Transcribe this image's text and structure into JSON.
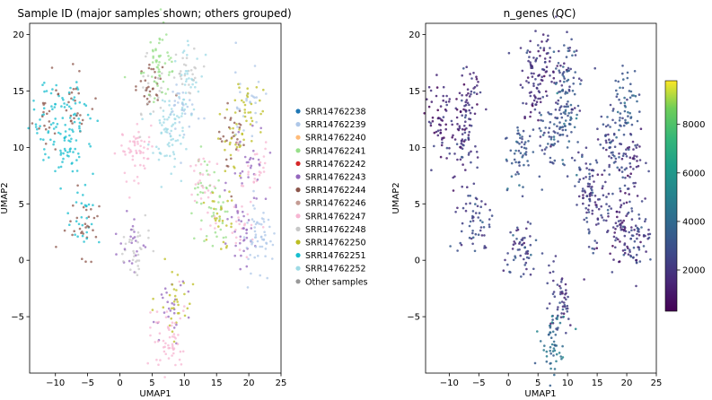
{
  "chart_data": [
    {
      "type": "scatter",
      "title": "Sample ID (major samples shown; others grouped)",
      "xlabel": "UMAP1",
      "ylabel": "UMAP2",
      "xlim": [
        -14,
        25
      ],
      "ylim": [
        -10,
        21
      ],
      "xticks": [
        -10,
        -5,
        0,
        5,
        10,
        15,
        20,
        25
      ],
      "yticks": [
        -5,
        0,
        5,
        10,
        15,
        20
      ],
      "grid": false,
      "legend_placement": "right-outside",
      "series": [
        {
          "name": "SRR14762238",
          "color": "#1f77b4"
        },
        {
          "name": "SRR14762239",
          "color": "#aec7e8"
        },
        {
          "name": "SRR14762240",
          "color": "#ffbb78"
        },
        {
          "name": "SRR14762241",
          "color": "#98df8a"
        },
        {
          "name": "SRR14762242",
          "color": "#d62728"
        },
        {
          "name": "SRR14762243",
          "color": "#9467bd"
        },
        {
          "name": "SRR14762244",
          "color": "#8c564b"
        },
        {
          "name": "SRR14762246",
          "color": "#c49c94"
        },
        {
          "name": "SRR14762247",
          "color": "#f7b6d2"
        },
        {
          "name": "SRR14762248",
          "color": "#c7c7c7"
        },
        {
          "name": "SRR14762250",
          "color": "#bcbd22"
        },
        {
          "name": "SRR14762251",
          "color": "#17becf"
        },
        {
          "name": "SRR14762252",
          "color": "#9edae5"
        },
        {
          "name": "Other samples",
          "color": "#999999"
        }
      ],
      "clusters": [
        {
          "x": -11.5,
          "y": 12.5,
          "colors": [
            "#17becf",
            "#17becf",
            "#8c564b"
          ]
        },
        {
          "x": -8.0,
          "y": 10.0,
          "colors": [
            "#17becf",
            "#17becf"
          ]
        },
        {
          "x": -7.2,
          "y": 14.0,
          "colors": [
            "#8c564b",
            "#17becf"
          ]
        },
        {
          "x": -5.5,
          "y": 3.5,
          "colors": [
            "#8c564b",
            "#17becf"
          ]
        },
        {
          "x": 2.0,
          "y": 9.5,
          "colors": [
            "#f7b6d2",
            "#f7b6d2",
            "#f7b6d2"
          ]
        },
        {
          "x": 4.5,
          "y": 15.2,
          "colors": [
            "#8c564b",
            "#c7c7c7"
          ]
        },
        {
          "x": 7.2,
          "y": 11.0,
          "colors": [
            "#9edae5",
            "#9edae5"
          ]
        },
        {
          "x": 6.0,
          "y": 17.5,
          "colors": [
            "#98df8a",
            "#98df8a"
          ]
        },
        {
          "x": 10.0,
          "y": 16.5,
          "colors": [
            "#c7c7c7",
            "#9edae5"
          ]
        },
        {
          "x": 9.5,
          "y": 13.0,
          "colors": [
            "#9edae5",
            "#aec7e8"
          ]
        },
        {
          "x": 13.0,
          "y": 7.0,
          "colors": [
            "#f7b6d2",
            "#98df8a"
          ]
        },
        {
          "x": 15.0,
          "y": 4.0,
          "colors": [
            "#bcbd22",
            "#98df8a"
          ]
        },
        {
          "x": 17.5,
          "y": 10.5,
          "colors": [
            "#8c564b",
            "#bcbd22"
          ]
        },
        {
          "x": 20.0,
          "y": 14.0,
          "colors": [
            "#aec7e8",
            "#bcbd22"
          ]
        },
        {
          "x": 20.5,
          "y": 8.0,
          "colors": [
            "#9467bd",
            "#f7b6d2"
          ]
        },
        {
          "x": 19.0,
          "y": 2.5,
          "colors": [
            "#9467bd",
            "#f7b6d2"
          ]
        },
        {
          "x": 21.5,
          "y": 2.0,
          "colors": [
            "#aec7e8",
            "#aec7e8"
          ]
        },
        {
          "x": 2.5,
          "y": 1.0,
          "colors": [
            "#c7c7c7",
            "#9467bd"
          ]
        },
        {
          "x": 8.5,
          "y": -3.5,
          "colors": [
            "#9467bd",
            "#bcbd22"
          ]
        },
        {
          "x": 7.5,
          "y": -7.0,
          "colors": [
            "#f7b6d2",
            "#f7b6d2"
          ]
        }
      ]
    },
    {
      "type": "scatter",
      "title": "n_genes (QC)",
      "xlabel": "UMAP1",
      "ylabel": "UMAP2",
      "xlim": [
        -14,
        25
      ],
      "ylim": [
        -10,
        21
      ],
      "xticks": [
        -10,
        -5,
        0,
        5,
        10,
        15,
        20,
        25
      ],
      "yticks": [
        -5,
        0,
        5,
        10,
        15,
        20
      ],
      "grid": false,
      "colorbar": {
        "colormap": "viridis",
        "ticks": [
          2000,
          4000,
          6000,
          8000
        ],
        "range": [
          300,
          9800
        ],
        "placement": "right"
      },
      "clusters": [
        {
          "x": -11.5,
          "y": 12.5,
          "value": 1500
        },
        {
          "x": -8.0,
          "y": 10.0,
          "value": 1700
        },
        {
          "x": -7.2,
          "y": 14.0,
          "value": 1800
        },
        {
          "x": -5.5,
          "y": 3.5,
          "value": 2500
        },
        {
          "x": 2.0,
          "y": 9.5,
          "value": 3200
        },
        {
          "x": 4.5,
          "y": 15.2,
          "value": 1800
        },
        {
          "x": 7.2,
          "y": 11.0,
          "value": 2800
        },
        {
          "x": 6.0,
          "y": 17.5,
          "value": 1900
        },
        {
          "x": 10.0,
          "y": 16.5,
          "value": 2600
        },
        {
          "x": 9.5,
          "y": 13.0,
          "value": 3300
        },
        {
          "x": 13.0,
          "y": 7.0,
          "value": 2300
        },
        {
          "x": 15.0,
          "y": 4.0,
          "value": 2200
        },
        {
          "x": 17.5,
          "y": 10.5,
          "value": 2700
        },
        {
          "x": 20.0,
          "y": 14.0,
          "value": 3300
        },
        {
          "x": 20.5,
          "y": 8.0,
          "value": 1900
        },
        {
          "x": 19.0,
          "y": 2.5,
          "value": 1700
        },
        {
          "x": 21.5,
          "y": 2.0,
          "value": 2400
        },
        {
          "x": 2.5,
          "y": 1.0,
          "value": 2400
        },
        {
          "x": 8.5,
          "y": -3.5,
          "value": 2000
        },
        {
          "x": 7.5,
          "y": -7.0,
          "value": 4200
        }
      ]
    }
  ]
}
